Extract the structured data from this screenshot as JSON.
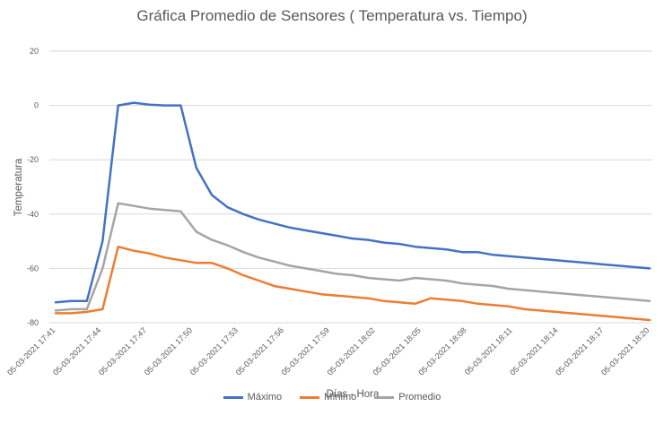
{
  "chart_data": {
    "type": "line",
    "title": "Gráfica Promedio de Sensores ( Temperatura vs. Tiempo)",
    "xlabel": "Días - Hora",
    "ylabel": "Temperatura",
    "ylim": [
      -80,
      20
    ],
    "yticks": [
      20,
      0,
      -20,
      -40,
      -60,
      -80
    ],
    "grid": true,
    "legend_position": "bottom",
    "x_tick_labels": [
      "05-03-2021 17:41",
      "05-03-2021 17:44",
      "05-03-2021 17:47",
      "05-03-2021 17:50",
      "05-03-2021 17:53",
      "05-03-2021 17:56",
      "05-03-2021 17:59",
      "05-03-2021 18:02",
      "05-03-2021 18:05",
      "05-03-2021 18:08",
      "05-03-2021 18:11",
      "05-03-2021 18:14",
      "05-03-2021 18:17",
      "05-03-2021 18:20"
    ],
    "series": [
      {
        "name": "Máximo",
        "color": "#4472c4",
        "values": [
          -72.5,
          -72,
          -72,
          -50,
          0,
          1,
          0.3,
          0,
          0,
          -23,
          -33,
          -37.5,
          -40,
          -42,
          -43.5,
          -45,
          -46,
          -47,
          -48,
          -49,
          -49.5,
          -50.5,
          -51,
          -52,
          -52.5,
          -53,
          -54,
          -54,
          -55,
          -55.5,
          -56,
          -56.5,
          -57,
          -57.5,
          -58,
          -58.5,
          -59,
          -59.5,
          -60
        ]
      },
      {
        "name": "Mínimo",
        "color": "#ed7d31",
        "values": [
          -76.5,
          -76.5,
          -76,
          -75,
          -52,
          -53.5,
          -54.5,
          -56,
          -57,
          -58,
          -58,
          -60,
          -62.5,
          -64.5,
          -66.5,
          -67.5,
          -68.5,
          -69.5,
          -70,
          -70.5,
          -71,
          -72,
          -72.5,
          -73,
          -71,
          -71.5,
          -72,
          -73,
          -73.5,
          -74,
          -75,
          -75.5,
          -76,
          -76.5,
          -77,
          -77.5,
          -78,
          -78.5,
          -79
        ]
      },
      {
        "name": "Promedio",
        "color": "#a5a5a5",
        "values": [
          -75.5,
          -75,
          -75,
          -60,
          -36,
          -37,
          -38,
          -38.5,
          -39,
          -46.5,
          -49.5,
          -51.5,
          -54,
          -56,
          -57.5,
          -59,
          -60,
          -61,
          -62,
          -62.5,
          -63.5,
          -64,
          -64.5,
          -63.5,
          -64,
          -64.5,
          -65.5,
          -66,
          -66.5,
          -67.5,
          -68,
          -68.5,
          -69,
          -69.5,
          -70,
          -70.5,
          -71,
          -71.5,
          -72
        ]
      }
    ]
  }
}
